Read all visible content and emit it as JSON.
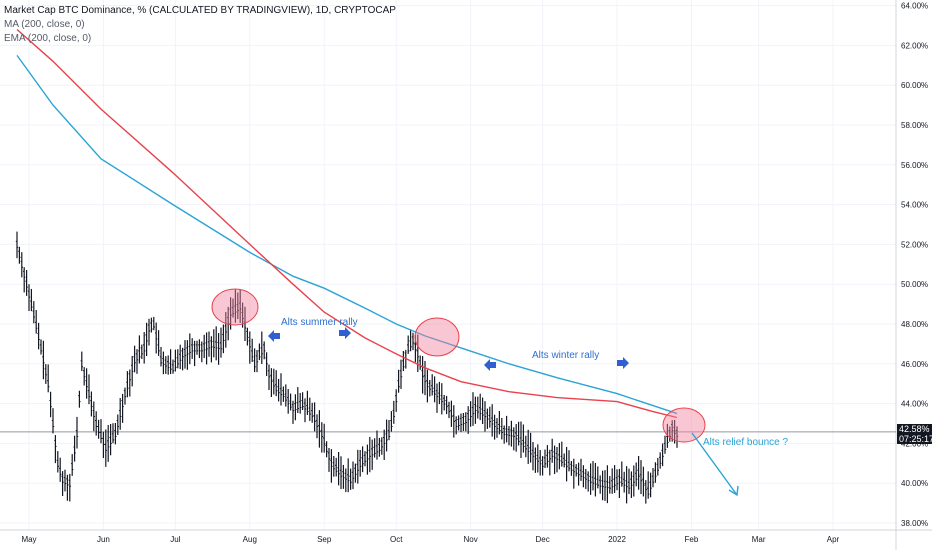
{
  "legend": {
    "title": "Market Cap BTC Dominance, % (CALCULATED BY TRADINGVIEW), 1D, CRYPTOCAP",
    "ma": "MA (200, close, 0)",
    "ema": "EMA (200, close, 0)"
  },
  "current_price": {
    "value_label": "42.58%",
    "countdown": "07:25:17"
  },
  "annotations": {
    "summer": "Alts summer rally",
    "winter": "Alts winter rally",
    "relief": "Alts relief bounce ?"
  },
  "colors": {
    "ma_line": "#e8424c",
    "ema_line": "#2aa3d6",
    "candle": "#131722",
    "arrow": "#2f5fd0",
    "text_annotation": "#2f6fd0",
    "relief_text": "#2aa3d6",
    "circle_fill": "rgba(242,130,158,0.45)",
    "circle_stroke": "#e8424c",
    "price_line": "#9598a1"
  },
  "chart_data": {
    "type": "line",
    "title": "Market Cap BTC Dominance, % (CALCULATED BY TRADINGVIEW), 1D, CRYPTOCAP",
    "ylim": [
      38,
      64
    ],
    "y_ticks": [
      "64.00%",
      "62.00%",
      "60.00%",
      "58.00%",
      "56.00%",
      "54.00%",
      "52.00%",
      "50.00%",
      "48.00%",
      "46.00%",
      "44.00%",
      "42.00%",
      "40.00%",
      "38.00%"
    ],
    "x_ticks": [
      "May",
      "Jun",
      "Jul",
      "Aug",
      "Sep",
      "Oct",
      "Nov",
      "Dec",
      "2022",
      "Feb",
      "Mar",
      "Apr"
    ],
    "x_tick_days": [
      0,
      31,
      61,
      92,
      123,
      153,
      184,
      214,
      245,
      276,
      304,
      335
    ],
    "xlim_days": [
      0,
      373
    ],
    "grid": true,
    "current_value": 42.58,
    "series": [
      {
        "name": "MA (200, close, 0)",
        "x_days": [
          -5,
          10,
          30,
          60,
          92,
          110,
          123,
          140,
          153,
          165,
          180,
          200,
          220,
          245,
          260,
          270
        ],
        "values": [
          62.8,
          61.2,
          58.8,
          55.6,
          52.0,
          50.0,
          48.6,
          47.3,
          46.5,
          45.8,
          45.1,
          44.6,
          44.3,
          44.1,
          43.6,
          43.3
        ]
      },
      {
        "name": "EMA (200, close, 0)",
        "x_days": [
          -5,
          10,
          30,
          60,
          92,
          110,
          123,
          140,
          153,
          165,
          180,
          200,
          220,
          245,
          260,
          270
        ],
        "values": [
          61.5,
          59.0,
          56.3,
          54.0,
          51.6,
          50.4,
          49.8,
          48.8,
          48.0,
          47.4,
          46.8,
          46.0,
          45.3,
          44.5,
          43.9,
          43.5
        ]
      },
      {
        "name": "price",
        "x_days": [
          -5,
          -2,
          2,
          5,
          8,
          10,
          12,
          14,
          17,
          20,
          22,
          25,
          28,
          32,
          36,
          40,
          44,
          48,
          50,
          52,
          55,
          60,
          64,
          68,
          72,
          76,
          80,
          84,
          88,
          92,
          94,
          96,
          98,
          100,
          103,
          106,
          110,
          114,
          118,
          122,
          126,
          130,
          134,
          138,
          142,
          146,
          150,
          152,
          154,
          156,
          158,
          160,
          162,
          164,
          166,
          170,
          174,
          178,
          182,
          186,
          190,
          194,
          198,
          202,
          206,
          210,
          214,
          218,
          222,
          226,
          230,
          234,
          238,
          242,
          246,
          250,
          254,
          258,
          262,
          264,
          266,
          268,
          270
        ],
        "values": [
          52.0,
          50.5,
          48.5,
          46.8,
          45.0,
          43.0,
          41.0,
          40.2,
          40.0,
          42.5,
          46.0,
          44.5,
          43.0,
          41.8,
          42.5,
          44.5,
          46.2,
          46.8,
          47.8,
          48.0,
          46.2,
          45.8,
          46.5,
          46.8,
          46.8,
          47.0,
          46.9,
          48.6,
          48.9,
          47.0,
          46.0,
          46.5,
          46.8,
          45.5,
          44.8,
          44.5,
          43.8,
          44.0,
          43.5,
          42.5,
          41.0,
          40.5,
          40.2,
          41.0,
          41.5,
          41.8,
          42.5,
          43.5,
          45.0,
          46.0,
          46.8,
          47.2,
          46.5,
          45.5,
          45.0,
          44.5,
          44.0,
          43.0,
          43.2,
          43.8,
          43.5,
          43.0,
          42.6,
          42.5,
          42.0,
          41.5,
          41.0,
          41.5,
          41.2,
          40.8,
          40.5,
          40.2,
          40.0,
          39.9,
          40.2,
          39.9,
          40.5,
          39.6,
          40.8,
          41.5,
          42.2,
          42.8,
          42.5
        ]
      }
    ]
  }
}
